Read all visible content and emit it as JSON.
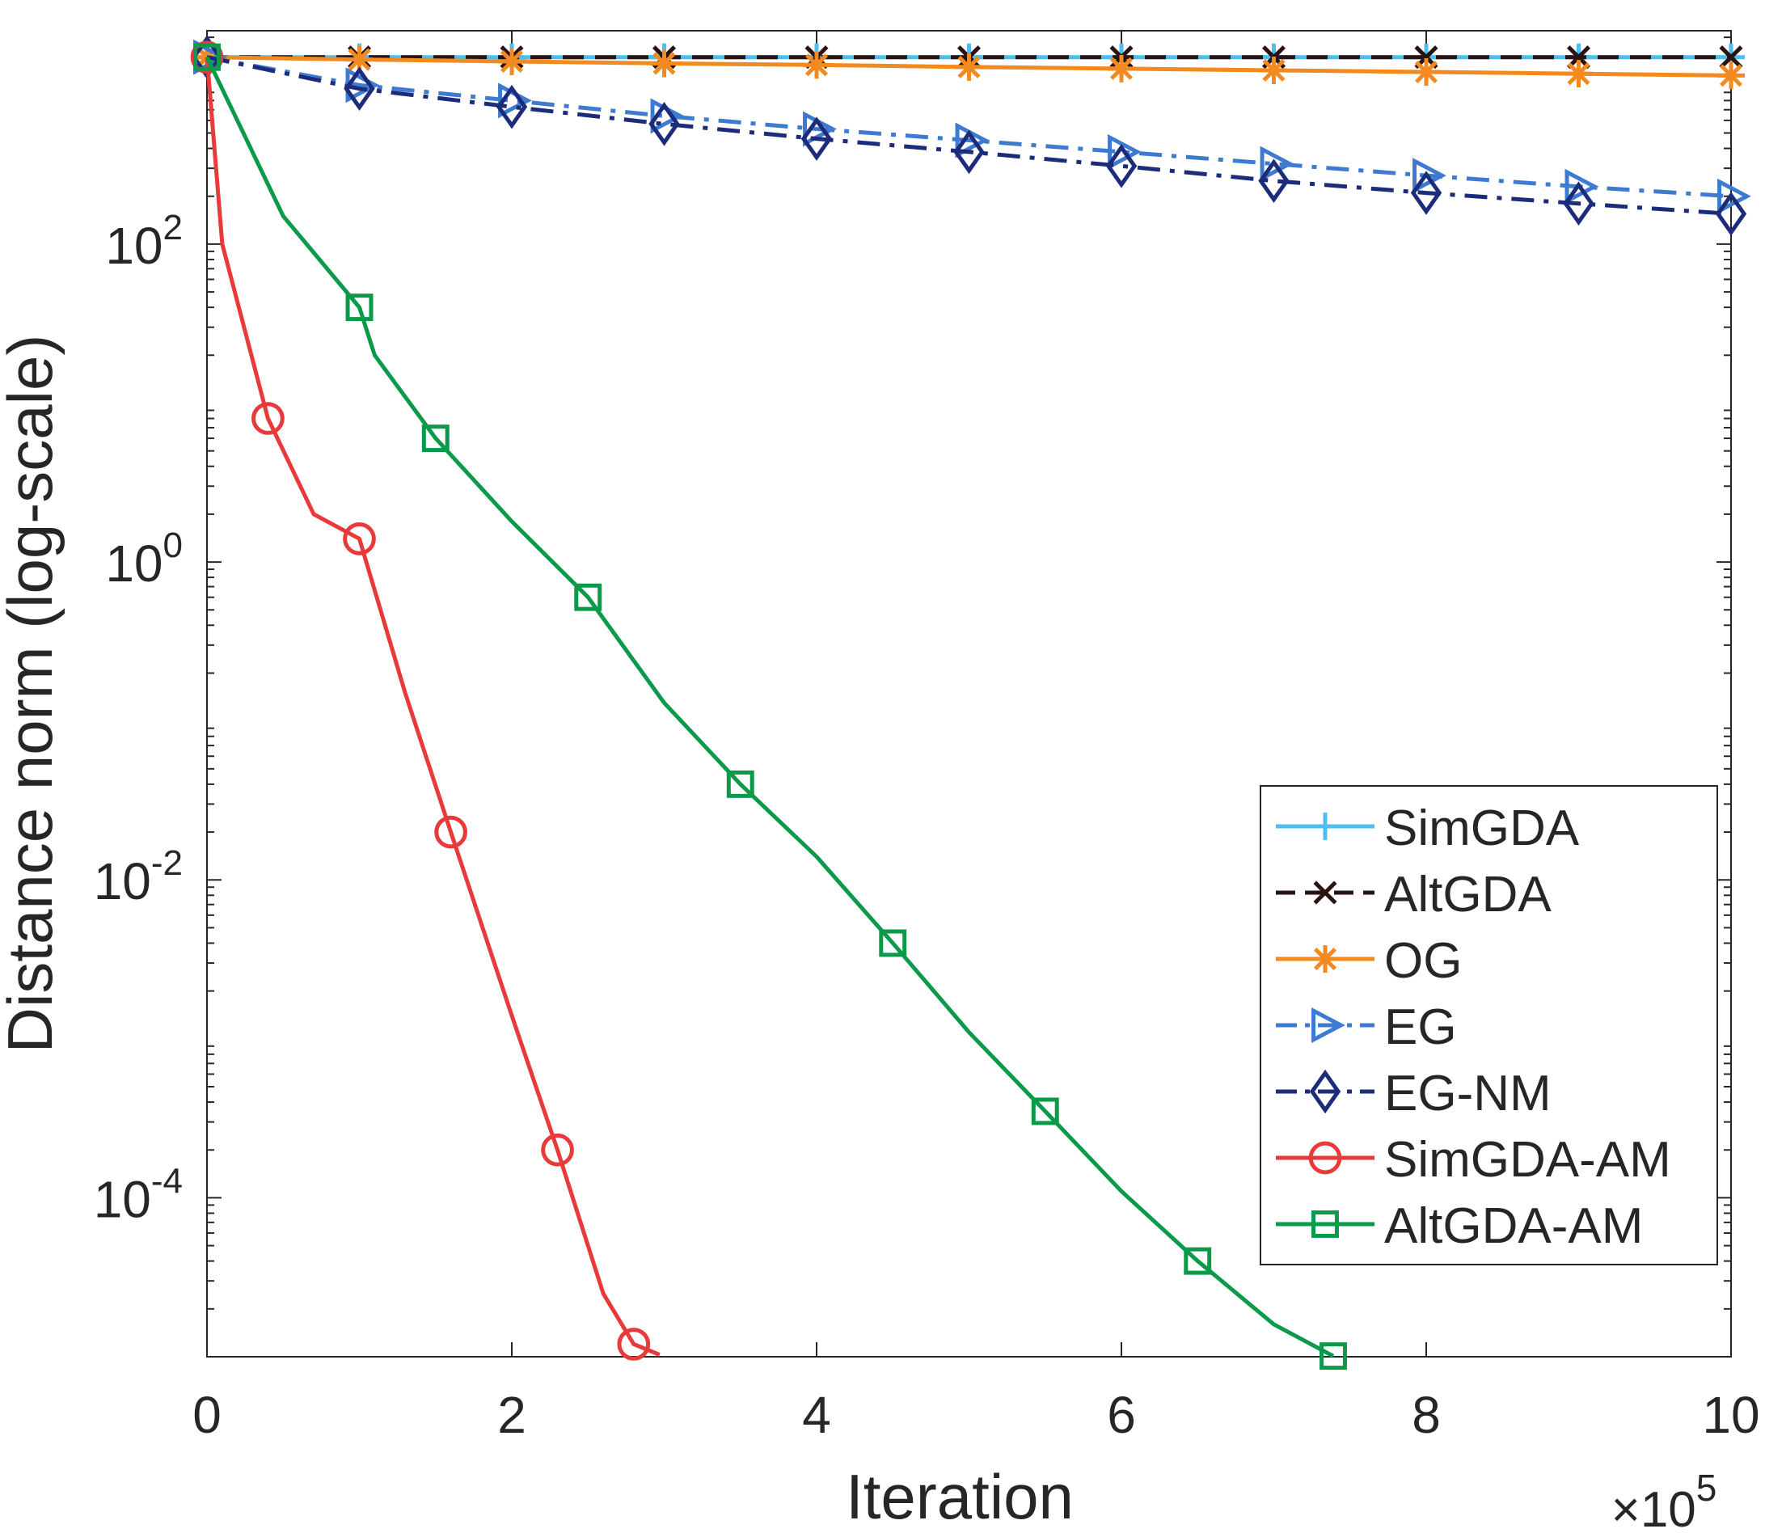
{
  "chart_data": {
    "type": "line",
    "yscale": "log",
    "xlabel": "Iteration",
    "ylabel": "Distance norm (log-scale)",
    "x_multiplier": {
      "base": "×10",
      "exponent": "5"
    },
    "xlim": [
      0,
      1000000
    ],
    "ylim": [
      1e-05,
      2200
    ],
    "x_ticks": [
      {
        "value": 0,
        "label": "0"
      },
      {
        "value": 200000,
        "label": "2"
      },
      {
        "value": 400000,
        "label": "4"
      },
      {
        "value": 600000,
        "label": "6"
      },
      {
        "value": 800000,
        "label": "8"
      },
      {
        "value": 1000000,
        "label": "10"
      }
    ],
    "y_ticks": [
      {
        "value": 100,
        "base": "10",
        "exp": "2"
      },
      {
        "value": 1,
        "base": "10",
        "exp": "0"
      },
      {
        "value": 0.01,
        "base": "10",
        "exp": "-2"
      },
      {
        "value": 0.0001,
        "base": "10",
        "exp": "-4"
      }
    ],
    "legend_position": "bottom-right",
    "series": [
      {
        "name": "SimGDA",
        "color": "#4dbeee",
        "dash": "solid",
        "marker": "plus",
        "x": [
          0,
          100000,
          200000,
          300000,
          400000,
          500000,
          600000,
          700000,
          800000,
          900000,
          1000000
        ],
        "y": [
          1500,
          1500,
          1500,
          1500,
          1500,
          1500,
          1500,
          1500,
          1500,
          1500,
          1500
        ]
      },
      {
        "name": "AltGDA",
        "color": "#2a1313",
        "dash": "dashed",
        "marker": "x",
        "x": [
          0,
          100000,
          200000,
          300000,
          400000,
          500000,
          600000,
          700000,
          800000,
          900000,
          1000000
        ],
        "y": [
          1500,
          1500,
          1500,
          1500,
          1500,
          1500,
          1500,
          1500,
          1500,
          1500,
          1500
        ]
      },
      {
        "name": "OG",
        "color": "#f28a20",
        "dash": "solid",
        "marker": "asterisk",
        "x": [
          0,
          100000,
          200000,
          300000,
          400000,
          500000,
          600000,
          700000,
          800000,
          900000,
          1000000
        ],
        "y": [
          1500,
          1450,
          1410,
          1370,
          1340,
          1300,
          1270,
          1240,
          1210,
          1180,
          1150
        ]
      },
      {
        "name": "EG",
        "color": "#3e7bd0",
        "dash": "dashdot",
        "marker": "triangle-right",
        "x": [
          0,
          100000,
          200000,
          300000,
          400000,
          500000,
          600000,
          700000,
          800000,
          900000,
          1000000
        ],
        "y": [
          1500,
          1000,
          800,
          640,
          530,
          450,
          380,
          320,
          270,
          230,
          200
        ]
      },
      {
        "name": "EG-NM",
        "color": "#1c2b7a",
        "dash": "dashdot",
        "marker": "diamond",
        "x": [
          0,
          100000,
          200000,
          300000,
          400000,
          500000,
          600000,
          700000,
          800000,
          900000,
          1000000
        ],
        "y": [
          1500,
          950,
          730,
          570,
          460,
          380,
          310,
          250,
          210,
          180,
          155
        ]
      },
      {
        "name": "SimGDA-AM",
        "color": "#e83a3a",
        "dash": "solid",
        "marker": "circle",
        "marker_every": 2,
        "x": [
          0,
          10000,
          40000,
          70000,
          100000,
          130000,
          160000,
          200000,
          230000,
          260000,
          280000,
          297000
        ],
        "y": [
          1500,
          100,
          8,
          2,
          1.4,
          0.15,
          0.02,
          0.0014,
          0.0002,
          2.5e-05,
          1.2e-05,
          1.03e-05
        ]
      },
      {
        "name": "AltGDA-AM",
        "color": "#0a9a4a",
        "dash": "solid",
        "marker": "square",
        "marker_every": 2,
        "x": [
          0,
          50000,
          100000,
          110000,
          150000,
          200000,
          250000,
          300000,
          350000,
          400000,
          450000,
          500000,
          550000,
          600000,
          650000,
          700000,
          739000
        ],
        "y": [
          1500,
          150,
          40,
          20,
          6,
          1.8,
          0.6,
          0.13,
          0.04,
          0.014,
          0.004,
          0.0011,
          0.00035,
          0.00011,
          4e-05,
          1.6e-05,
          1.01e-05
        ]
      }
    ]
  }
}
